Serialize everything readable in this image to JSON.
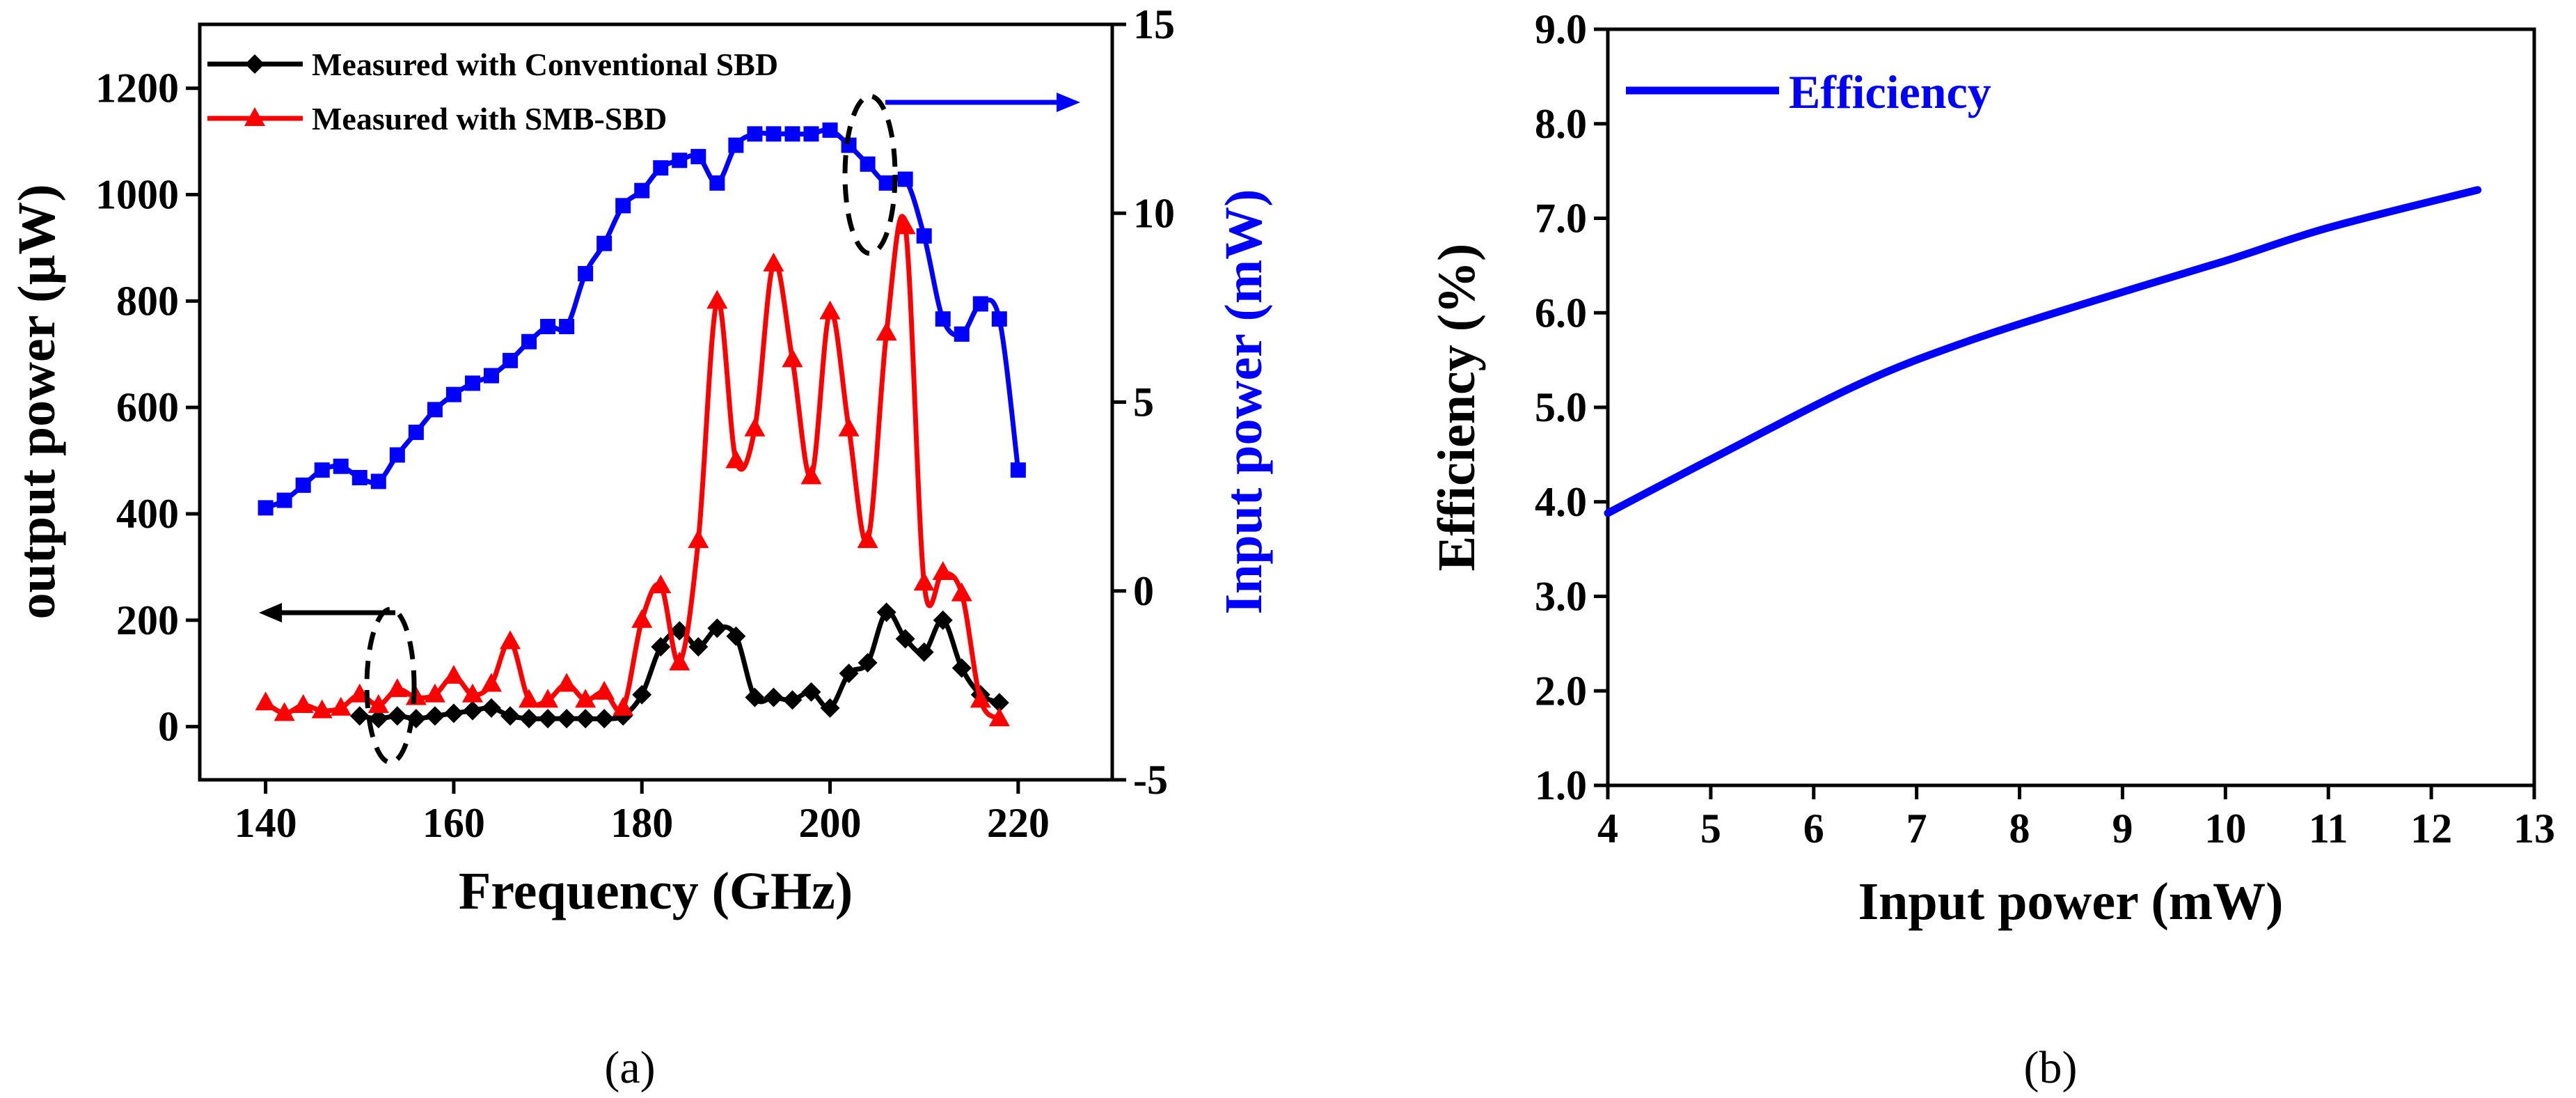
{
  "chart_data": [
    {
      "id": "a",
      "type": "line",
      "caption": "(a)",
      "xlabel": "Frequency (GHz)",
      "ylabel_left": "output power (µW)",
      "ylabel_right": "Input power (mW)",
      "xlim": [
        133,
        230
      ],
      "ylim_left": [
        -100,
        1320
      ],
      "ylim_right": [
        -5,
        15
      ],
      "x_ticks": [
        "140",
        "160",
        "180",
        "200",
        "220"
      ],
      "y_left_ticks": [
        "0",
        "200",
        "400",
        "600",
        "800",
        "1000",
        "1200"
      ],
      "y_right_ticks": [
        "-5",
        "0",
        "5",
        "10",
        "15"
      ],
      "legend": [
        {
          "label": "Measured with Conventional SBD",
          "color": "#000000",
          "marker": "diamond"
        },
        {
          "label": "Measured with SMB-SBD",
          "color": "#ff0000",
          "marker": "triangle"
        }
      ],
      "series": [
        {
          "name": "Measured with Conventional SBD",
          "axis": "left",
          "color": "#000000",
          "marker": "diamond",
          "x": [
            150,
            152,
            154,
            156,
            158,
            160,
            162,
            164,
            166,
            168,
            170,
            172,
            174,
            176,
            178,
            180,
            182,
            184,
            186,
            188,
            190,
            192,
            194,
            196,
            198,
            200,
            202,
            204,
            206,
            208,
            210,
            212,
            214,
            216,
            218
          ],
          "y": [
            20,
            15,
            20,
            15,
            20,
            25,
            30,
            35,
            20,
            15,
            15,
            15,
            15,
            15,
            20,
            60,
            150,
            180,
            150,
            185,
            170,
            55,
            55,
            50,
            65,
            35,
            100,
            120,
            215,
            165,
            140,
            200,
            110,
            60,
            45
          ]
        },
        {
          "name": "Measured with SMB-SBD",
          "axis": "left",
          "color": "#ff0000",
          "marker": "triangle",
          "x": [
            140,
            142,
            144,
            146,
            148,
            150,
            152,
            154,
            156,
            158,
            160,
            162,
            164,
            166,
            168,
            170,
            172,
            174,
            176,
            178,
            180,
            182,
            184,
            186,
            188,
            190,
            192,
            194,
            196,
            198,
            200,
            202,
            204,
            206,
            208,
            210,
            212,
            214,
            216,
            218
          ],
          "y": [
            45,
            25,
            40,
            30,
            35,
            60,
            40,
            70,
            55,
            60,
            95,
            60,
            80,
            160,
            50,
            50,
            80,
            50,
            65,
            35,
            200,
            265,
            120,
            350,
            800,
            500,
            560,
            870,
            690,
            470,
            780,
            560,
            350,
            740,
            940,
            270,
            290,
            250,
            50,
            15
          ]
        },
        {
          "name": "Input power",
          "axis": "right",
          "color": "#0000ff",
          "marker": "square",
          "x": [
            140,
            142,
            144,
            146,
            148,
            150,
            152,
            154,
            156,
            158,
            160,
            162,
            164,
            166,
            168,
            170,
            172,
            174,
            176,
            178,
            180,
            182,
            184,
            186,
            188,
            190,
            192,
            194,
            196,
            198,
            200,
            202,
            204,
            206,
            208,
            210,
            212,
            214,
            216,
            218,
            220
          ],
          "y": [
            2.2,
            2.4,
            2.8,
            3.2,
            3.3,
            3.0,
            2.9,
            3.6,
            4.2,
            4.8,
            5.2,
            5.5,
            5.7,
            6.1,
            6.6,
            7.0,
            7.0,
            8.4,
            9.2,
            10.2,
            10.6,
            11.2,
            11.4,
            11.5,
            10.8,
            11.8,
            12.1,
            12.1,
            12.1,
            12.1,
            12.2,
            11.8,
            11.3,
            10.8,
            10.9,
            9.4,
            7.2,
            6.8,
            7.6,
            7.2,
            3.2
          ]
        }
      ],
      "annotations": {
        "left_arrow": "points to left axis (output power)",
        "right_arrow": "points to right axis (input power)"
      }
    },
    {
      "id": "b",
      "type": "line",
      "caption": "(b)",
      "xlabel": "Input power (mW)",
      "ylabel": "Efficiency (%)",
      "xlim": [
        4,
        13
      ],
      "ylim": [
        1.0,
        9.0
      ],
      "x_ticks": [
        "4",
        "5",
        "6",
        "7",
        "8",
        "9",
        "10",
        "11",
        "12",
        "13"
      ],
      "y_ticks": [
        "1.0",
        "2.0",
        "3.0",
        "4.0",
        "5.0",
        "6.0",
        "7.0",
        "8.0",
        "9.0"
      ],
      "legend": [
        {
          "label": "Efficiency",
          "color": "#0000ff"
        }
      ],
      "series": [
        {
          "name": "Efficiency",
          "color": "#0000ff",
          "x": [
            4.0,
            5.0,
            6.45,
            7.5,
            8.7,
            10.0,
            11.0,
            12.45
          ],
          "y": [
            3.88,
            4.45,
            5.25,
            5.7,
            6.12,
            6.55,
            6.9,
            7.3
          ]
        }
      ]
    }
  ]
}
